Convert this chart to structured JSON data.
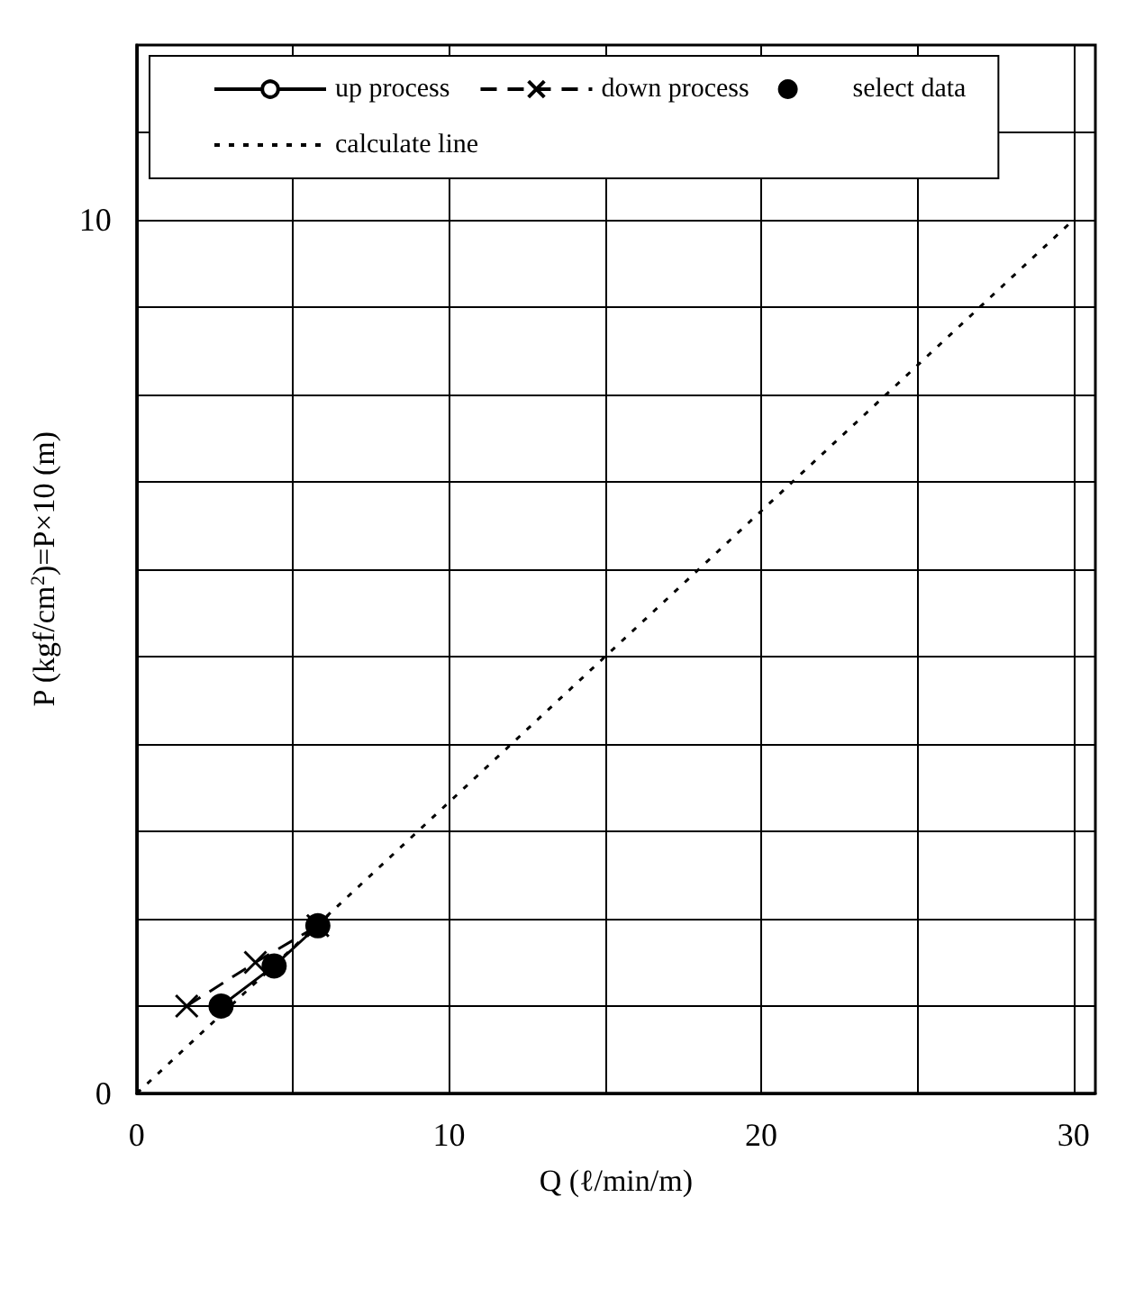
{
  "chart_data": {
    "type": "line",
    "xlabel": "Q (ℓ/min/m)",
    "ylabel": "P (kgf/cm$^{2}$)=P×10 (m)",
    "xlim": [
      0,
      30.7
    ],
    "ylim": [
      0,
      12
    ],
    "xticks": [
      0,
      {
        "value": 5,
        "label": null
      },
      10,
      {
        "value": 15,
        "label": null
      },
      20,
      {
        "value": 25,
        "label": null
      },
      30
    ],
    "yticks": [
      0,
      {
        "value": 1,
        "label": null
      },
      {
        "value": 2,
        "label": null
      },
      {
        "value": 3,
        "label": null
      },
      {
        "value": 4,
        "label": null
      },
      {
        "value": 5,
        "label": null
      },
      {
        "value": 6,
        "label": null
      },
      {
        "value": 7,
        "label": null
      },
      {
        "value": 8,
        "label": null
      },
      {
        "value": 9,
        "label": null
      },
      10,
      {
        "value": 11,
        "label": null
      }
    ],
    "grid": true,
    "legend": "top",
    "series": [
      {
        "name": "up process",
        "type": "line",
        "color": "#000000",
        "marker": "circle",
        "line_style": "solid",
        "x": [
          2.7,
          4.4,
          5.8
        ],
        "values": [
          1.0,
          1.46,
          1.92
        ]
      },
      {
        "name": "down process",
        "type": "line",
        "color": "#000000",
        "marker": "cross",
        "line_style": "dashed",
        "x": [
          1.6,
          3.8,
          5.8
        ],
        "values": [
          1.0,
          1.5,
          1.92
        ]
      },
      {
        "name": "select data",
        "type": "scatter",
        "color": "#000000",
        "marker": "circle",
        "x": [
          2.7,
          4.4,
          5.8
        ],
        "values": [
          1.0,
          1.46,
          1.92
        ]
      },
      {
        "name": "calculate line",
        "type": "line",
        "color": "#000000",
        "marker": "none",
        "line_style": "dotted",
        "x": [
          0,
          30
        ],
        "values": [
          0,
          10
        ]
      }
    ]
  }
}
